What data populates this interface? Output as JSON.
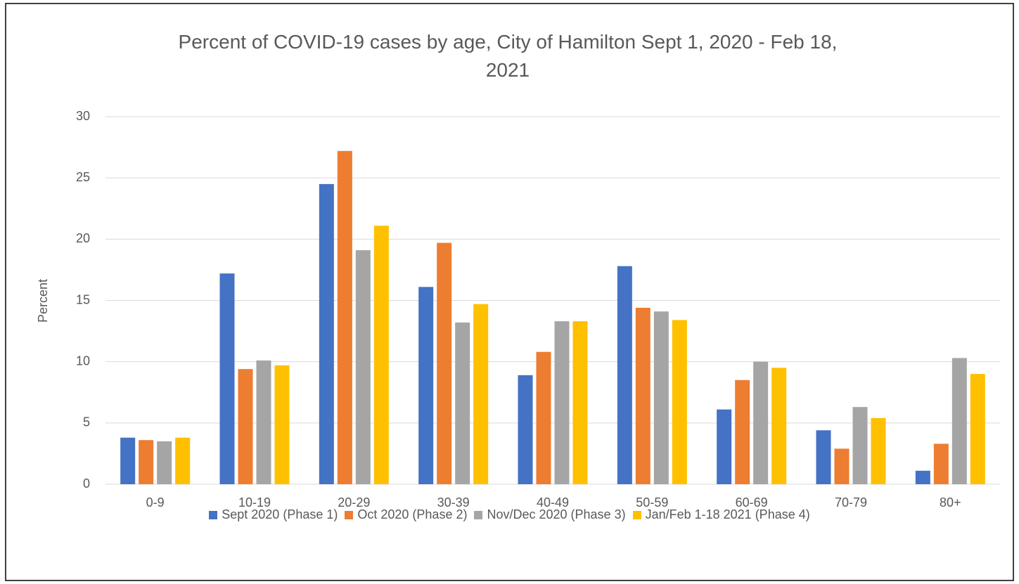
{
  "chart_data": {
    "type": "bar",
    "title": "Percent of COVID-19 cases by age, City of Hamilton Sept 1, 2020 - Feb 18, 2021",
    "y_label": "Percent",
    "categories": [
      "0-9",
      "10-19",
      "20-29",
      "30-39",
      "40-49",
      "50-59",
      "60-69",
      "70-79",
      "80+"
    ],
    "series": [
      {
        "name": "Sept 2020 (Phase 1)",
        "color": "#4472c4",
        "values": [
          3.8,
          17.2,
          24.5,
          16.1,
          8.9,
          17.8,
          6.1,
          4.4,
          1.1
        ]
      },
      {
        "name": "Oct 2020 (Phase 2)",
        "color": "#ed7d31",
        "values": [
          3.6,
          9.4,
          27.2,
          19.7,
          10.8,
          14.4,
          8.5,
          2.9,
          3.3
        ]
      },
      {
        "name": "Nov/Dec 2020 (Phase 3)",
        "color": "#a5a5a5",
        "values": [
          3.5,
          10.1,
          19.1,
          13.2,
          13.3,
          14.1,
          10.0,
          6.3,
          10.3
        ]
      },
      {
        "name": "Jan/Feb 1-18 2021 (Phase 4)",
        "color": "#ffc000",
        "values": [
          3.8,
          9.7,
          21.1,
          14.7,
          13.3,
          13.4,
          9.5,
          5.4,
          9.0
        ]
      }
    ],
    "ylim": [
      0,
      30
    ],
    "yticks": [
      0,
      5,
      10,
      15,
      20,
      25,
      30
    ],
    "grid": true,
    "legend": "bottom"
  }
}
